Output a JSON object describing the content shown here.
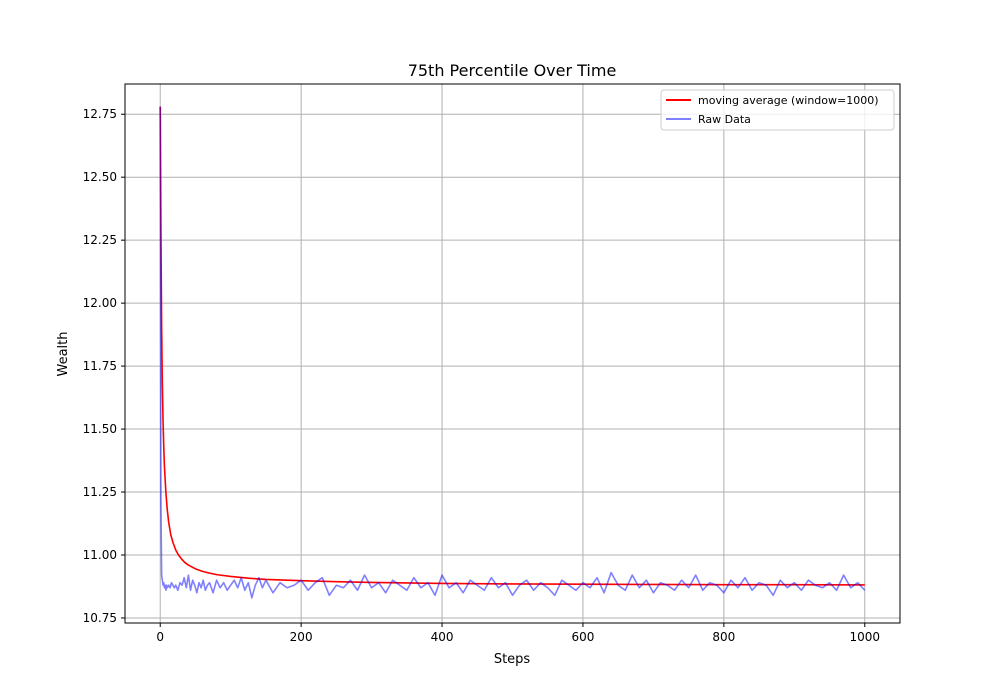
{
  "chart_data": {
    "type": "line",
    "title": "75th Percentile Over Time",
    "xlabel": "Steps",
    "ylabel": "Wealth",
    "xlim": [
      -50,
      1050
    ],
    "ylim": [
      10.73,
      12.87
    ],
    "xticks": [
      0,
      200,
      400,
      600,
      800,
      1000
    ],
    "yticks": [
      10.75,
      11.0,
      11.25,
      11.5,
      11.75,
      12.0,
      12.25,
      12.5,
      12.75
    ],
    "grid": true,
    "legend_position": "top-right",
    "series": [
      {
        "name": "moving average (window=1000)",
        "color": "#ff0000",
        "x": [
          0,
          1,
          2,
          3,
          4,
          5,
          6,
          8,
          10,
          12,
          15,
          18,
          22,
          26,
          30,
          35,
          40,
          50,
          60,
          70,
          80,
          100,
          125,
          150,
          200,
          250,
          300,
          400,
          500,
          600,
          700,
          800,
          900,
          1000
        ],
        "y": [
          12.78,
          12.28,
          11.9,
          11.68,
          11.53,
          11.43,
          11.35,
          11.25,
          11.18,
          11.13,
          11.08,
          11.05,
          11.02,
          11.0,
          10.985,
          10.97,
          10.96,
          10.945,
          10.935,
          10.928,
          10.922,
          10.915,
          10.908,
          10.903,
          10.898,
          10.894,
          10.891,
          10.887,
          10.885,
          10.884,
          10.883,
          10.882,
          10.882,
          10.881
        ]
      },
      {
        "name": "Raw Data",
        "color": "#0000ff",
        "opacity": 0.5,
        "x": [
          0,
          1,
          2,
          3,
          4,
          5,
          6,
          7,
          8,
          9,
          10,
          12,
          14,
          16,
          18,
          20,
          22,
          25,
          28,
          31,
          34,
          37,
          40,
          43,
          46,
          49,
          52,
          55,
          58,
          61,
          64,
          67,
          70,
          75,
          80,
          85,
          90,
          95,
          100,
          105,
          110,
          115,
          120,
          125,
          130,
          135,
          140,
          145,
          150,
          160,
          170,
          180,
          190,
          200,
          210,
          220,
          230,
          240,
          250,
          260,
          270,
          280,
          290,
          300,
          310,
          320,
          330,
          340,
          350,
          360,
          370,
          380,
          390,
          400,
          410,
          420,
          430,
          440,
          450,
          460,
          470,
          480,
          490,
          500,
          510,
          520,
          530,
          540,
          550,
          560,
          570,
          580,
          590,
          600,
          610,
          620,
          630,
          640,
          650,
          660,
          670,
          680,
          690,
          700,
          710,
          720,
          730,
          740,
          750,
          760,
          770,
          780,
          790,
          800,
          810,
          820,
          830,
          840,
          850,
          860,
          870,
          880,
          890,
          900,
          910,
          920,
          930,
          940,
          950,
          960,
          970,
          980,
          990,
          1000
        ],
        "y": [
          12.78,
          11.2,
          10.92,
          10.9,
          10.88,
          10.89,
          10.87,
          10.88,
          10.86,
          10.88,
          10.87,
          10.88,
          10.87,
          10.89,
          10.88,
          10.87,
          10.88,
          10.86,
          10.89,
          10.88,
          10.91,
          10.87,
          10.92,
          10.86,
          10.9,
          10.88,
          10.85,
          10.89,
          10.87,
          10.9,
          10.86,
          10.88,
          10.89,
          10.85,
          10.9,
          10.87,
          10.89,
          10.86,
          10.88,
          10.9,
          10.87,
          10.91,
          10.86,
          10.89,
          10.83,
          10.88,
          10.91,
          10.87,
          10.9,
          10.85,
          10.89,
          10.87,
          10.88,
          10.9,
          10.86,
          10.89,
          10.91,
          10.84,
          10.88,
          10.87,
          10.9,
          10.86,
          10.92,
          10.87,
          10.89,
          10.85,
          10.9,
          10.88,
          10.86,
          10.91,
          10.87,
          10.89,
          10.84,
          10.92,
          10.87,
          10.89,
          10.85,
          10.9,
          10.88,
          10.86,
          10.91,
          10.87,
          10.89,
          10.84,
          10.88,
          10.9,
          10.86,
          10.89,
          10.87,
          10.84,
          10.9,
          10.88,
          10.86,
          10.89,
          10.87,
          10.91,
          10.85,
          10.93,
          10.88,
          10.86,
          10.92,
          10.87,
          10.9,
          10.85,
          10.89,
          10.88,
          10.86,
          10.9,
          10.87,
          10.92,
          10.86,
          10.89,
          10.88,
          10.85,
          10.9,
          10.87,
          10.91,
          10.86,
          10.89,
          10.88,
          10.84,
          10.9,
          10.87,
          10.89,
          10.86,
          10.9,
          10.88,
          10.87,
          10.89,
          10.86,
          10.92,
          10.87,
          10.89,
          10.86
        ]
      }
    ]
  }
}
